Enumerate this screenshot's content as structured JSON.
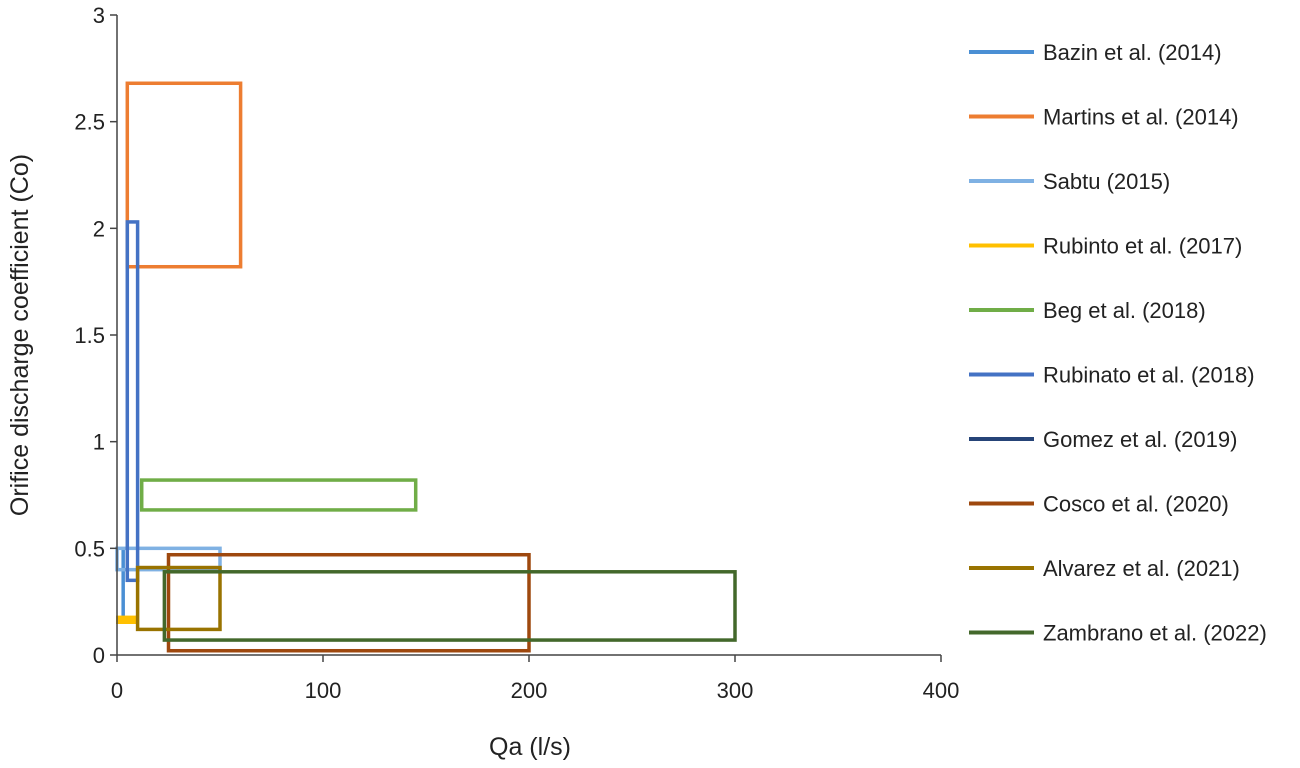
{
  "chart_data": {
    "type": "line",
    "title": "",
    "xlabel": "Qa (l/s)",
    "ylabel": "Orifice discharge coefficient (Co)",
    "xlim": [
      0,
      400
    ],
    "ylim": [
      0,
      3
    ],
    "xticks": [
      "0",
      "100",
      "200",
      "300",
      "400"
    ],
    "yticks": [
      "0",
      "0.5",
      "1",
      "1.5",
      "2",
      "2.5",
      "3"
    ],
    "grid": false,
    "legend_position": "right",
    "series": [
      {
        "name": "Bazin et al. (2014)",
        "color": "#4a8fd4",
        "x": [
          3,
          3
        ],
        "y": [
          0.16,
          0.5
        ]
      },
      {
        "name": "Martins et al. (2014)",
        "color": "#ed7d31",
        "x": [
          5,
          60
        ],
        "y": [
          1.82,
          2.68
        ]
      },
      {
        "name": "Sabtu (2015)",
        "color": "#7fb1e3",
        "x": [
          0,
          50
        ],
        "y": [
          0.4,
          0.5
        ]
      },
      {
        "name": "Rubinto et al. (2017)",
        "color": "#ffc000",
        "x": [
          0,
          10
        ],
        "y": [
          0.15,
          0.18
        ]
      },
      {
        "name": "Beg et al. (2018)",
        "color": "#70ad47",
        "x": [
          12,
          145
        ],
        "y": [
          0.68,
          0.82
        ]
      },
      {
        "name": "Rubinato et al. (2018)",
        "color": "#4472c4",
        "x": [
          5,
          10
        ],
        "y": [
          0.35,
          2.03
        ]
      },
      {
        "name": "Gomez et al. (2019)",
        "color": "#264478",
        "x": [],
        "y": []
      },
      {
        "name": "Cosco et al. (2020)",
        "color": "#9e480e",
        "x": [
          25,
          200
        ],
        "y": [
          0.02,
          0.47
        ]
      },
      {
        "name": "Alvarez et al. (2021)",
        "color": "#997300",
        "x": [
          10,
          50
        ],
        "y": [
          0.12,
          0.41
        ]
      },
      {
        "name": "Zambrano et al. (2022)",
        "color": "#43682b",
        "x": [
          23,
          300
        ],
        "y": [
          0.07,
          0.39
        ]
      }
    ]
  }
}
